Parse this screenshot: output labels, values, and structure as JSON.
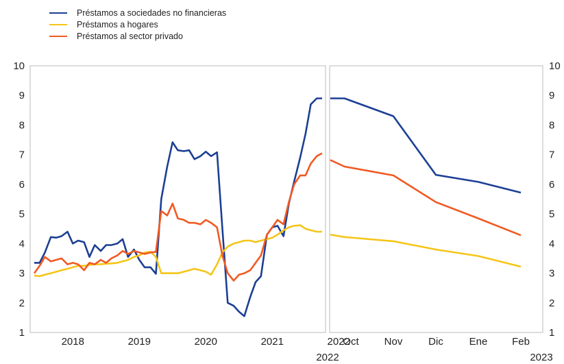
{
  "legend": [
    {
      "label": "Préstamos a sociedades no financieras",
      "color": "#1c3f94"
    },
    {
      "label": "Préstamos a hogares",
      "color": "#f5c518"
    },
    {
      "label": "Préstamos al sector privado",
      "color": "#f05a22"
    }
  ],
  "chart_data": [
    {
      "type": "line",
      "title": "",
      "xlabel": "",
      "ylabel": "",
      "ylim": [
        1,
        10
      ],
      "yticks": [
        1,
        2,
        3,
        4,
        5,
        6,
        7,
        8,
        9,
        10
      ],
      "x_tick_labels": [
        "2018",
        "2019",
        "2020",
        "2021",
        "2022"
      ],
      "x_range": [
        2017.92,
        2022.25
      ],
      "grid": false,
      "series": [
        {
          "name": "Préstamos a sociedades no financieras",
          "color": "#1c3f94",
          "x": [
            2017.92,
            2018.0,
            2018.08,
            2018.17,
            2018.25,
            2018.33,
            2018.42,
            2018.5,
            2018.58,
            2018.67,
            2018.75,
            2018.83,
            2018.92,
            2019.0,
            2019.08,
            2019.17,
            2019.25,
            2019.33,
            2019.42,
            2019.5,
            2019.58,
            2019.67,
            2019.75,
            2019.83,
            2019.92,
            2020.0,
            2020.08,
            2020.17,
            2020.25,
            2020.33,
            2020.42,
            2020.5,
            2020.58,
            2020.67,
            2020.75,
            2020.83,
            2020.92,
            2021.0,
            2021.08,
            2021.17,
            2021.25,
            2021.33,
            2021.42,
            2021.5,
            2021.58,
            2021.67,
            2021.75,
            2021.83,
            2021.92,
            2022.0,
            2022.08,
            2022.17,
            2022.25
          ],
          "values": [
            3.35,
            3.35,
            3.7,
            4.22,
            4.2,
            4.25,
            4.4,
            4.0,
            4.1,
            4.05,
            3.55,
            3.95,
            3.75,
            3.95,
            3.95,
            4.0,
            4.15,
            3.55,
            3.8,
            3.45,
            3.2,
            3.2,
            2.98,
            5.5,
            6.6,
            7.42,
            7.15,
            7.12,
            7.15,
            6.85,
            6.95,
            7.1,
            6.95,
            7.08,
            4.5,
            2.0,
            1.9,
            1.7,
            1.55,
            2.2,
            2.7,
            2.9,
            4.3,
            4.55,
            4.6,
            4.25,
            5.35,
            6.1,
            6.9,
            7.7,
            8.7,
            8.9,
            8.9
          ]
        },
        {
          "name": "Préstamos a hogares",
          "color": "#f5c518",
          "x": [
            2017.92,
            2018.0,
            2018.08,
            2018.17,
            2018.25,
            2018.33,
            2018.42,
            2018.5,
            2018.58,
            2018.67,
            2018.75,
            2018.83,
            2018.92,
            2019.0,
            2019.08,
            2019.17,
            2019.25,
            2019.33,
            2019.42,
            2019.5,
            2019.58,
            2019.67,
            2019.75,
            2019.83,
            2019.92,
            2020.0,
            2020.08,
            2020.17,
            2020.25,
            2020.33,
            2020.42,
            2020.5,
            2020.58,
            2020.67,
            2020.75,
            2020.83,
            2020.92,
            2021.0,
            2021.08,
            2021.17,
            2021.25,
            2021.33,
            2021.42,
            2021.5,
            2021.58,
            2021.67,
            2021.75,
            2021.83,
            2021.92,
            2022.0,
            2022.08,
            2022.17,
            2022.25
          ],
          "values": [
            2.92,
            2.9,
            2.95,
            3.0,
            3.05,
            3.1,
            3.15,
            3.2,
            3.25,
            3.25,
            3.28,
            3.3,
            3.3,
            3.32,
            3.33,
            3.35,
            3.4,
            3.45,
            3.55,
            3.6,
            3.7,
            3.72,
            3.55,
            3.0,
            3.0,
            3.0,
            3.0,
            3.05,
            3.1,
            3.15,
            3.1,
            3.05,
            2.95,
            3.3,
            3.7,
            3.9,
            4.0,
            4.05,
            4.1,
            4.1,
            4.05,
            4.1,
            4.15,
            4.2,
            4.3,
            4.45,
            4.55,
            4.6,
            4.62,
            4.5,
            4.45,
            4.4,
            4.4
          ]
        },
        {
          "name": "Préstamos al sector privado",
          "color": "#f05a22",
          "x": [
            2017.92,
            2018.0,
            2018.08,
            2018.17,
            2018.25,
            2018.33,
            2018.42,
            2018.5,
            2018.58,
            2018.67,
            2018.75,
            2018.83,
            2018.92,
            2019.0,
            2019.08,
            2019.17,
            2019.25,
            2019.33,
            2019.42,
            2019.5,
            2019.58,
            2019.67,
            2019.75,
            2019.83,
            2019.92,
            2020.0,
            2020.08,
            2020.17,
            2020.25,
            2020.33,
            2020.42,
            2020.5,
            2020.58,
            2020.67,
            2020.75,
            2020.83,
            2020.92,
            2021.0,
            2021.08,
            2021.17,
            2021.25,
            2021.33,
            2021.42,
            2021.5,
            2021.58,
            2021.67,
            2021.75,
            2021.83,
            2021.92,
            2022.0,
            2022.08,
            2022.17,
            2022.25
          ],
          "values": [
            3.0,
            3.25,
            3.55,
            3.4,
            3.45,
            3.5,
            3.3,
            3.35,
            3.3,
            3.1,
            3.35,
            3.3,
            3.45,
            3.35,
            3.5,
            3.6,
            3.75,
            3.65,
            3.75,
            3.7,
            3.65,
            3.7,
            3.72,
            5.1,
            4.95,
            5.35,
            4.85,
            4.8,
            4.7,
            4.7,
            4.65,
            4.8,
            4.7,
            4.55,
            3.6,
            3.0,
            2.75,
            2.95,
            3.0,
            3.1,
            3.35,
            3.6,
            4.3,
            4.55,
            4.8,
            4.65,
            5.4,
            6.0,
            6.3,
            6.3,
            6.7,
            6.95,
            7.05
          ]
        }
      ]
    },
    {
      "type": "line",
      "title": "",
      "xlabel": "",
      "ylabel": "",
      "ylim": [
        1,
        10
      ],
      "yticks": [
        1,
        2,
        3,
        4,
        5,
        6,
        7,
        8,
        9,
        10
      ],
      "categories": [
        "Oct",
        "Nov",
        "Dic",
        "Ene",
        "Feb"
      ],
      "year_labels": [
        "2022",
        "2023"
      ],
      "grid": false,
      "series": [
        {
          "name": "Préstamos a sociedades no financieras",
          "color": "#1c3f94",
          "x": [
            -0.6,
            -0.15,
            1.0,
            2.0,
            3.0,
            4.0
          ],
          "values": [
            8.9,
            8.9,
            8.3,
            6.32,
            6.08,
            5.72
          ]
        },
        {
          "name": "Préstamos a hogares",
          "color": "#f5c518",
          "x": [
            -0.6,
            -0.15,
            1.0,
            2.0,
            3.0,
            4.0
          ],
          "values": [
            4.3,
            4.22,
            4.08,
            3.8,
            3.58,
            3.22
          ]
        },
        {
          "name": "Préstamos al sector privado",
          "color": "#f05a22",
          "x": [
            -0.6,
            -0.15,
            1.0,
            2.0,
            3.0,
            4.0
          ],
          "values": [
            6.82,
            6.6,
            6.3,
            5.4,
            4.85,
            4.28
          ]
        }
      ]
    }
  ]
}
